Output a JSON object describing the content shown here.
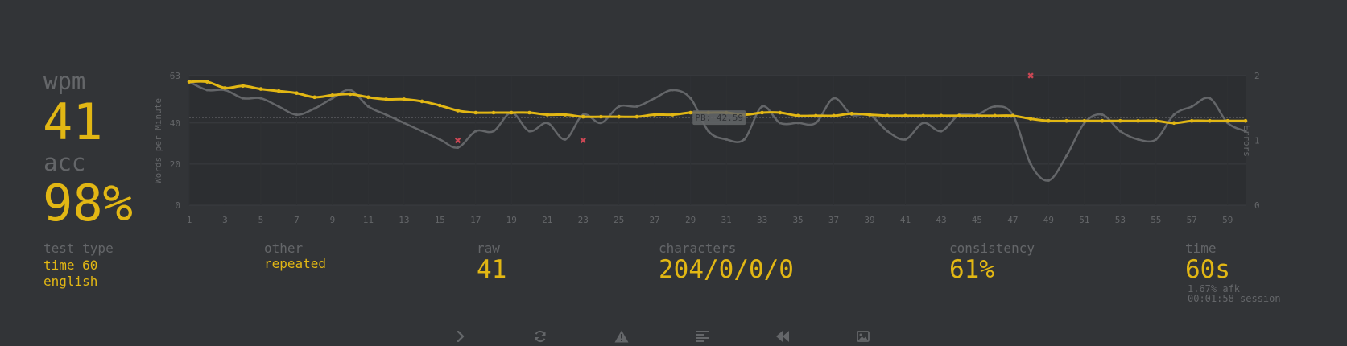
{
  "stats": {
    "wpm_label": "wpm",
    "wpm_value": "41",
    "acc_label": "acc",
    "acc_value": "98%"
  },
  "chart_data": {
    "type": "line",
    "ylabel": "Words per Minute",
    "y2label": "Errors",
    "ylim": [
      0,
      63
    ],
    "y_ticks": [
      "63",
      "40",
      "20",
      "0"
    ],
    "y2lim": [
      0,
      2
    ],
    "y2_ticks": [
      "2",
      "1",
      "0"
    ],
    "xlim": [
      1,
      60
    ],
    "x_ticks": [
      "1",
      "3",
      "5",
      "7",
      "9",
      "11",
      "13",
      "15",
      "17",
      "19",
      "21",
      "23",
      "25",
      "27",
      "29",
      "31",
      "33",
      "35",
      "37",
      "39",
      "41",
      "43",
      "45",
      "47",
      "49",
      "51",
      "53",
      "55",
      "57",
      "59"
    ],
    "pb_label": "PB: 42.59",
    "pb_value": 42.59,
    "grid": true,
    "series": [
      {
        "color": "#e2b714",
        "x": [
          1,
          2,
          3,
          4,
          5,
          6,
          7,
          8,
          9,
          10,
          11,
          12,
          13,
          14,
          15,
          16,
          17,
          18,
          19,
          20,
          21,
          22,
          23,
          24,
          25,
          26,
          27,
          28,
          29,
          30,
          31,
          32,
          33,
          34,
          35,
          36,
          37,
          38,
          39,
          40,
          41,
          42,
          43,
          44,
          45,
          46,
          47,
          48,
          49,
          50,
          51,
          52,
          53,
          54,
          55,
          56,
          57,
          58,
          59,
          60
        ],
        "values": [
          60,
          60,
          57,
          58,
          56.5,
          55.5,
          54.5,
          52.5,
          53.5,
          54,
          52.5,
          51.5,
          51.5,
          50.5,
          48.5,
          46,
          45,
          45,
          45,
          45,
          44,
          44,
          43,
          43,
          43,
          43,
          44,
          44,
          45,
          45,
          45,
          44,
          45,
          45,
          43.5,
          43.5,
          43.5,
          44.5,
          44,
          43.5,
          43.5,
          43.5,
          43.5,
          43.5,
          43.5,
          43.5,
          43.5,
          42,
          41,
          41,
          41,
          41,
          41,
          41,
          41,
          40,
          41,
          41,
          41,
          41
        ]
      },
      {
        "color": "#646669",
        "x": [
          1,
          2,
          3,
          4,
          5,
          6,
          7,
          8,
          9,
          10,
          11,
          12,
          13,
          14,
          15,
          16,
          17,
          18,
          19,
          20,
          21,
          22,
          23,
          24,
          25,
          26,
          27,
          28,
          29,
          30,
          31,
          32,
          33,
          34,
          35,
          36,
          37,
          38,
          39,
          40,
          41,
          42,
          43,
          44,
          45,
          46,
          47,
          48,
          49,
          50,
          51,
          52,
          53,
          54,
          55,
          56,
          57,
          58,
          59,
          60
        ],
        "values": [
          60,
          56,
          56,
          52,
          52,
          48,
          44,
          47,
          52,
          56,
          48,
          44,
          40,
          36,
          32,
          28,
          36,
          36,
          45,
          36,
          40,
          32,
          44,
          40,
          48,
          48,
          52,
          56,
          52,
          36,
          32,
          32,
          48,
          40,
          40,
          40,
          52,
          44,
          44,
          36,
          32,
          40,
          36,
          44,
          44,
          48,
          44,
          20,
          12,
          24,
          40,
          44,
          36,
          32,
          32,
          44,
          48,
          52,
          40,
          36
        ]
      }
    ],
    "errors": {
      "x": [
        16,
        23,
        48
      ],
      "values": [
        1,
        1,
        2
      ]
    }
  },
  "details": {
    "test_type_label": "test type",
    "test_type_value1": "time 60",
    "test_type_value2": "english",
    "other_label": "other",
    "other_value": "repeated",
    "raw_label": "raw",
    "raw_value": "41",
    "characters_label": "characters",
    "characters_value": "204/0/0/0",
    "consistency_label": "consistency",
    "consistency_value": "61%",
    "time_label": "time",
    "time_value": "60s",
    "afk": "1.67% afk",
    "session": "00:01:58 session"
  },
  "buttons": [
    {
      "name": "next-test-button",
      "icon": "chevron-right-icon"
    },
    {
      "name": "restart-test-button",
      "icon": "refresh-icon"
    },
    {
      "name": "practice-missed-words-button",
      "icon": "warning-icon"
    },
    {
      "name": "word-history-button",
      "icon": "align-left-icon"
    },
    {
      "name": "watch-replay-button",
      "icon": "backward-icon"
    },
    {
      "name": "save-screenshot-button",
      "icon": "image-icon"
    }
  ]
}
